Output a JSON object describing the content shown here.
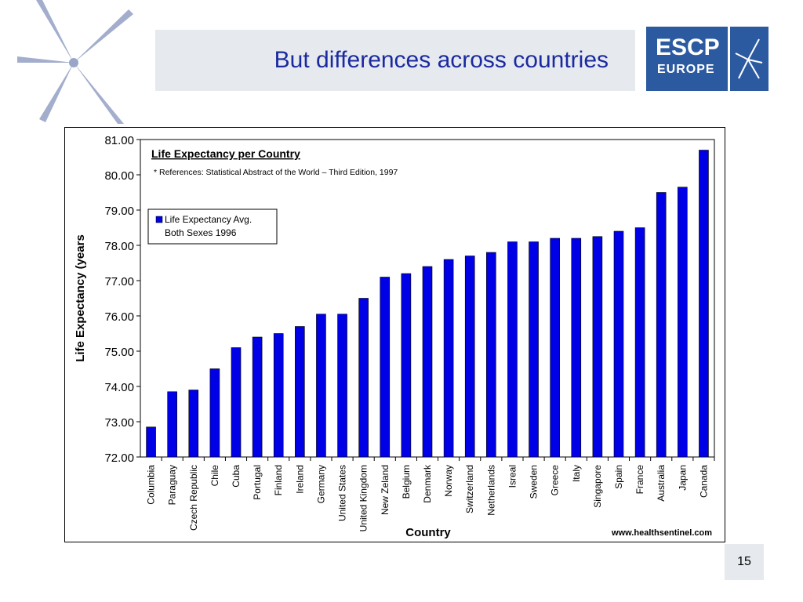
{
  "slide": {
    "title": "But differences across countries",
    "brand_line1": "ESCP",
    "brand_line2": "EUROPE",
    "page_number": "15",
    "colors": {
      "title": "#1a2aa0",
      "brand_bg": "#2c5aa0",
      "title_box": "#e6e9ee",
      "deco_star": "#9aa6c8"
    }
  },
  "chart_data": {
    "type": "bar",
    "title": "Life Expectancy per Country",
    "subtitle": "* References: Statistical Abstract of the World – Third Edition, 1997",
    "xlabel": "Country",
    "ylabel": "Life Expectancy (years",
    "source": "www.healthsentinel.com",
    "legend": {
      "label_line1": "Life Expectancy Avg.",
      "label_line2": "Both Sexes 1996",
      "placement": "top-left"
    },
    "bar_color": "#0000e6",
    "ylim": [
      72,
      81
    ],
    "yticks": [
      "72.00",
      "73.00",
      "74.00",
      "75.00",
      "76.00",
      "77.00",
      "78.00",
      "79.00",
      "80.00",
      "81.00"
    ],
    "categories": [
      "Columbia",
      "Paraguay",
      "Czech Republic",
      "Chile",
      "Cuba",
      "Portugal",
      "Finland",
      "Ireland",
      "Germany",
      "United States",
      "United Kingdom",
      "New Zeland",
      "Belgium",
      "Denmark",
      "Norway",
      "Switzerland",
      "Netherlands",
      "Isreal",
      "Sweden",
      "Greece",
      "Italy",
      "Singapore",
      "Spain",
      "France",
      "Australia",
      "Japan",
      "Canada"
    ],
    "values": [
      72.85,
      73.85,
      73.9,
      74.5,
      75.1,
      75.4,
      75.5,
      75.7,
      76.05,
      76.05,
      76.5,
      77.1,
      77.2,
      77.4,
      77.6,
      77.7,
      77.8,
      78.1,
      78.1,
      78.2,
      78.2,
      78.25,
      78.4,
      78.5,
      79.5,
      79.65,
      80.7
    ]
  }
}
